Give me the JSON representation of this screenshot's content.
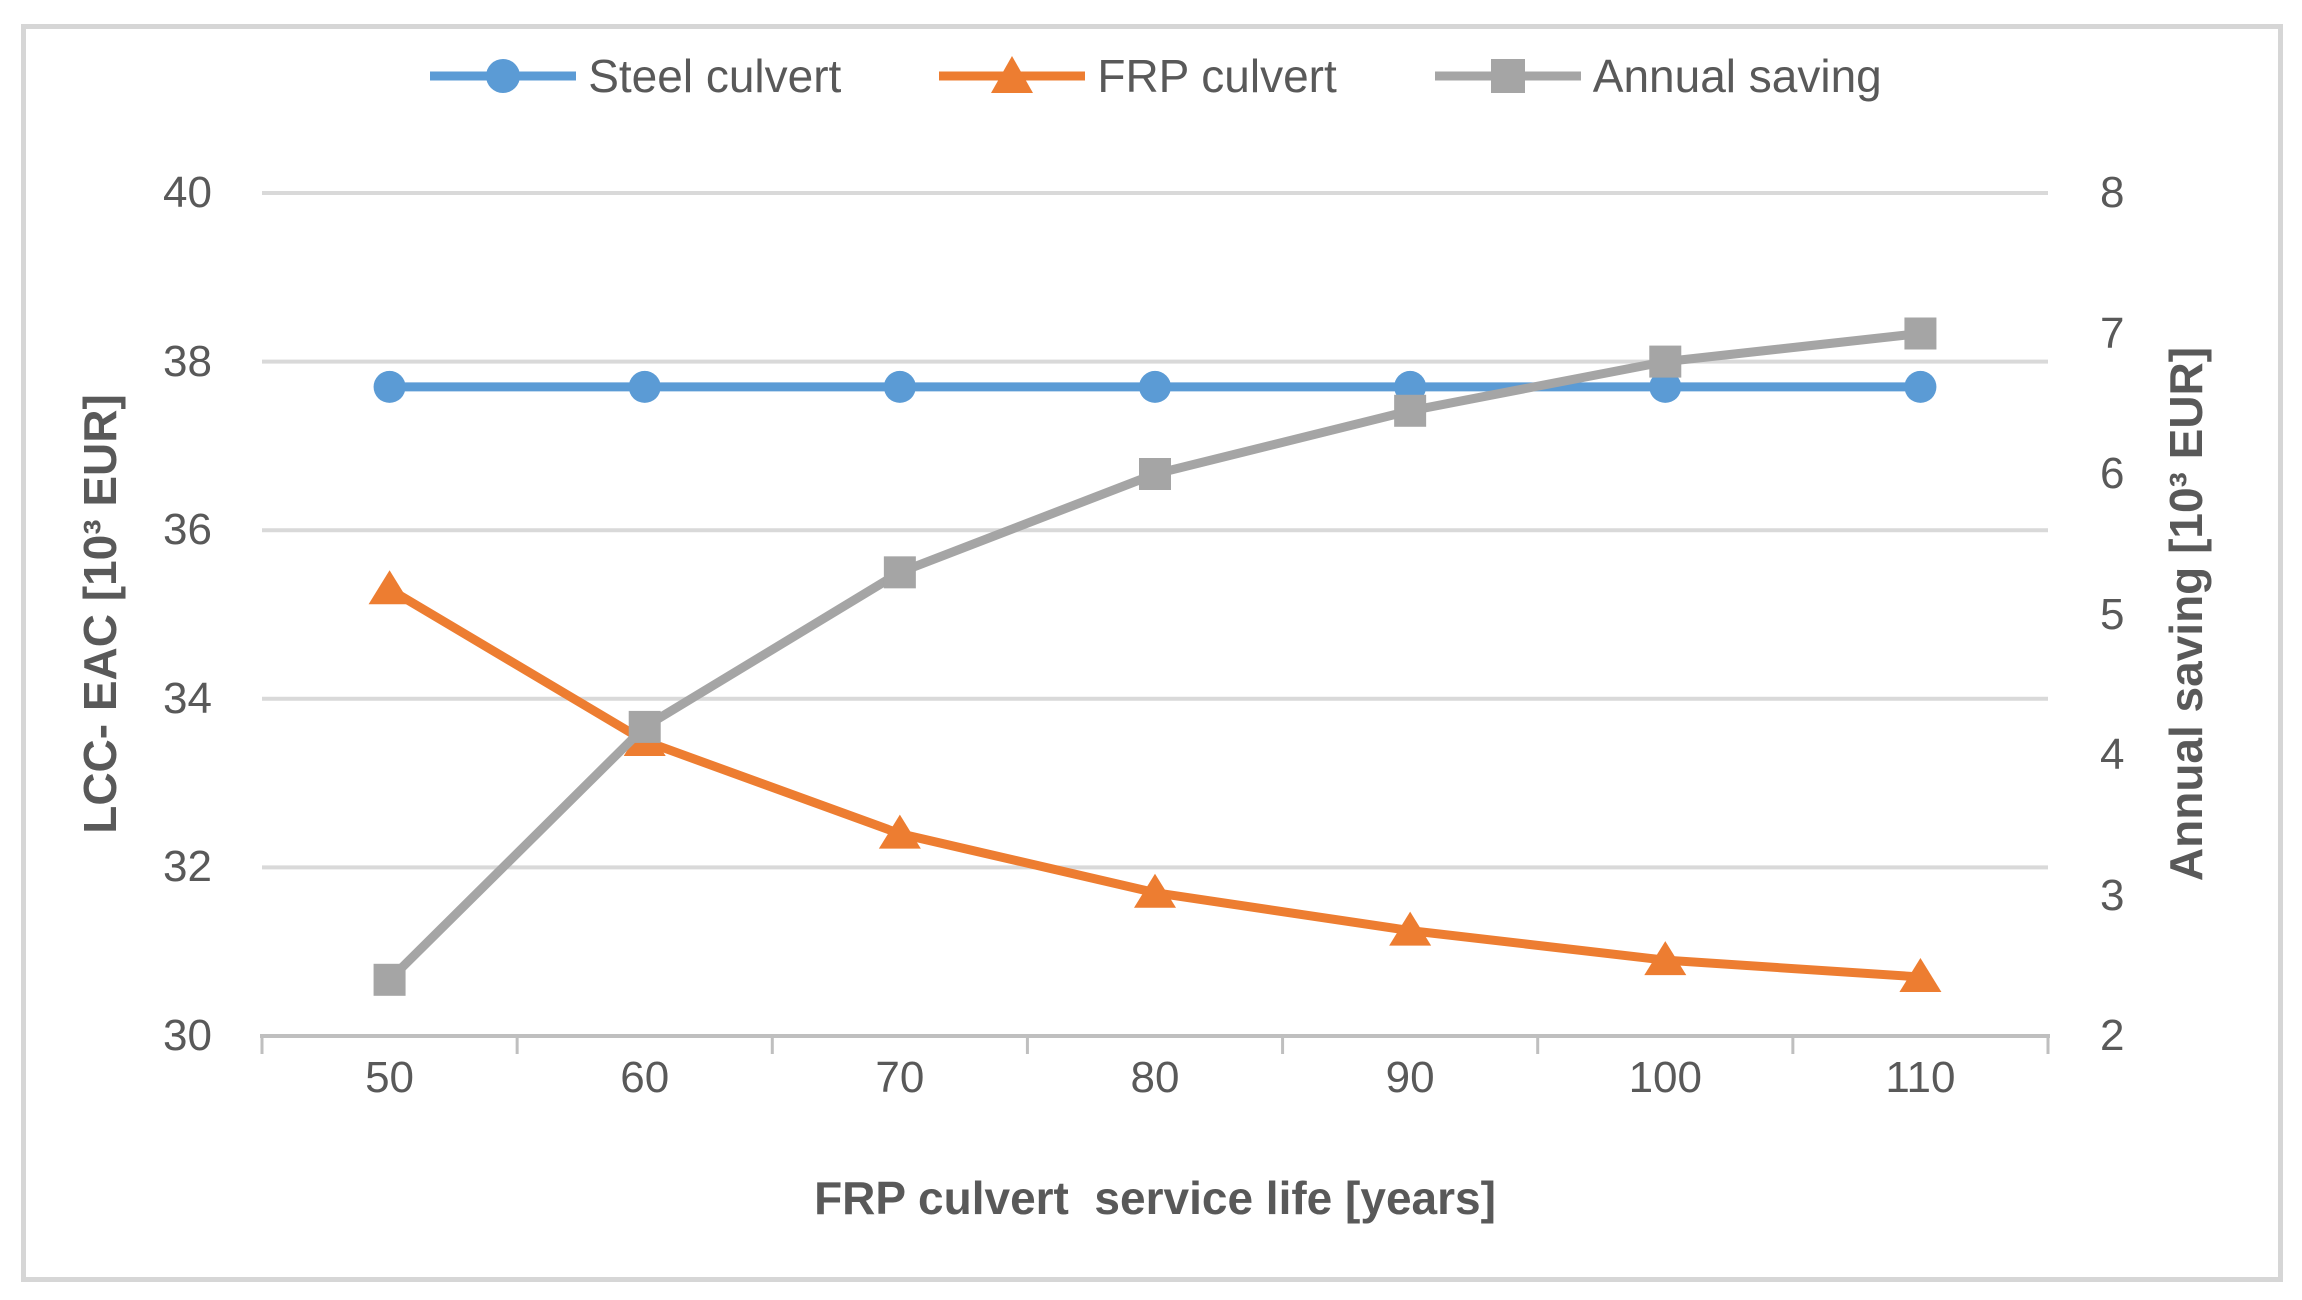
{
  "chart_data": {
    "type": "line",
    "title": "",
    "x": [
      50,
      60,
      70,
      80,
      90,
      100,
      110
    ],
    "xlabel": "FRP culvert  service life [years]",
    "ylabel_left": "LCC- EAC [10³ EUR]",
    "ylabel_right": "Annual saving [10³ EUR]",
    "y_left_ticks": [
      40,
      38,
      36,
      34,
      32,
      30
    ],
    "y_right_ticks": [
      8,
      7,
      6,
      5,
      4,
      3,
      2
    ],
    "ylim_left": [
      30,
      40
    ],
    "ylim_right": [
      2,
      8
    ],
    "grid": "horizontal",
    "legend_position": "top",
    "series": [
      {
        "name": "Steel culvert",
        "axis": "left",
        "color": "#5B9BD5",
        "marker": "circle",
        "values": [
          37.7,
          37.7,
          37.7,
          37.7,
          37.7,
          37.7,
          37.7
        ]
      },
      {
        "name": "FRP culvert",
        "axis": "left",
        "color": "#ED7D31",
        "marker": "triangle",
        "values": [
          35.3,
          33.5,
          32.4,
          31.7,
          31.25,
          30.9,
          30.7
        ]
      },
      {
        "name": "Annual saving",
        "axis": "right",
        "color": "#A5A5A5",
        "marker": "square",
        "values": [
          2.4,
          4.2,
          5.3,
          6.0,
          6.45,
          6.8,
          7.0
        ]
      }
    ]
  },
  "colors": {
    "background": "#FFFFFF",
    "frame": "#D6D6D6",
    "gridline": "#D9D9D9",
    "axis_line": "#BFBFBF",
    "tick_text": "#595959",
    "title_text": "#595959"
  }
}
